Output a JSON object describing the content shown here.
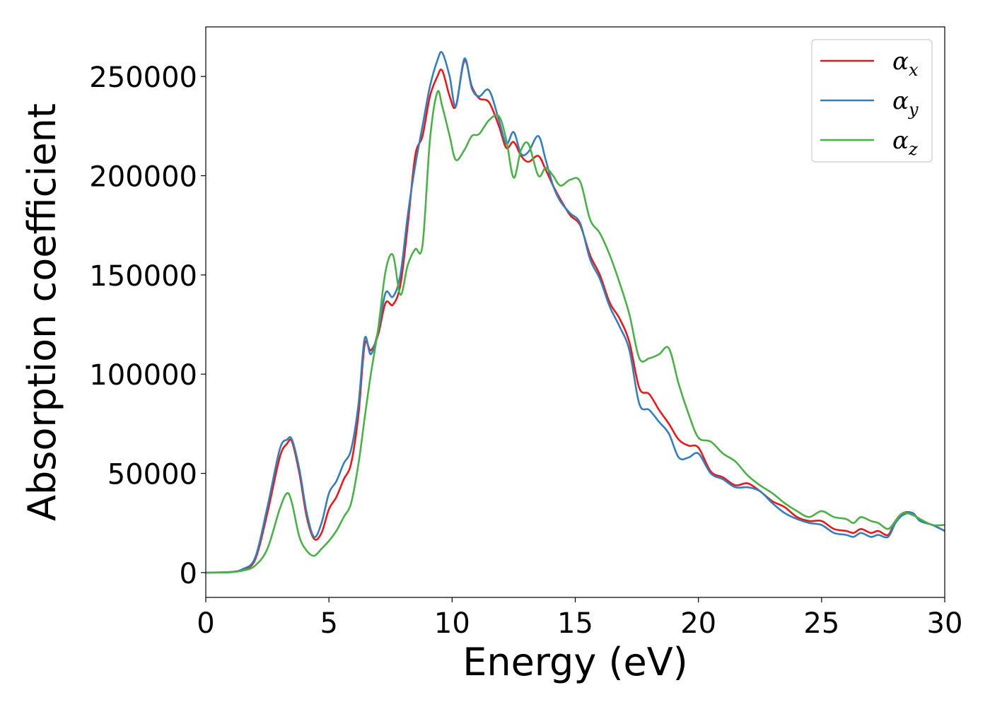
{
  "chart_data": {
    "type": "line",
    "title": "",
    "xlabel": "Energy (eV)",
    "ylabel": "Absorption coefficient",
    "xlim": [
      0,
      30
    ],
    "ylim": [
      -12500,
      275000
    ],
    "xticks": [
      0,
      5,
      10,
      15,
      20,
      25,
      30
    ],
    "xtick_labels": [
      "0",
      "5",
      "10",
      "15",
      "20",
      "25",
      "30"
    ],
    "yticks": [
      0,
      50000,
      100000,
      150000,
      200000,
      250000
    ],
    "ytick_labels": [
      "0",
      "50000",
      "100000",
      "150000",
      "200000",
      "250000"
    ],
    "grid": false,
    "legend_position": "top-right",
    "series": [
      {
        "name": "αx",
        "symbol": "α",
        "subscript": "x",
        "color": "#e41a1c",
        "x": [
          0,
          1,
          1.5,
          2,
          2.5,
          3,
          3.3,
          3.5,
          3.8,
          4.1,
          4.4,
          4.7,
          5,
          5.3,
          5.6,
          5.9,
          6.2,
          6.45,
          6.7,
          7,
          7.3,
          7.6,
          7.9,
          8.2,
          8.5,
          8.8,
          9.1,
          9.4,
          9.6,
          9.9,
          10.15,
          10.5,
          10.8,
          11.1,
          11.5,
          11.9,
          12.2,
          12.5,
          12.8,
          13.1,
          13.5,
          13.8,
          14.1,
          14.4,
          14.8,
          15.2,
          15.6,
          16,
          16.4,
          16.8,
          17.2,
          17.6,
          18,
          18.4,
          18.8,
          19.2,
          19.6,
          20,
          20.5,
          21,
          21.5,
          22,
          22.5,
          23,
          23.5,
          24,
          24.5,
          25,
          25.5,
          26,
          26.3,
          26.6,
          27,
          27.3,
          27.7,
          28,
          28.3,
          28.7,
          29,
          29.5,
          30
        ],
        "values": [
          0,
          300,
          1500,
          6500,
          30000,
          58000,
          65000,
          66000,
          50000,
          28000,
          17000,
          20000,
          32000,
          38000,
          47000,
          55000,
          80000,
          115000,
          112000,
          120000,
          136000,
          135000,
          145000,
          175000,
          210000,
          220000,
          240000,
          250000,
          253000,
          240000,
          235000,
          258000,
          245000,
          239000,
          237000,
          225000,
          214000,
          217000,
          210000,
          207000,
          210000,
          203000,
          195000,
          188000,
          180000,
          175000,
          160000,
          150000,
          136000,
          128000,
          116000,
          93000,
          90000,
          82000,
          75000,
          67000,
          64000,
          63000,
          51000,
          48000,
          44000,
          45000,
          41000,
          36000,
          33000,
          28000,
          26000,
          26000,
          22000,
          21000,
          20000,
          22000,
          20000,
          21000,
          19000,
          26000,
          30000,
          30000,
          26000,
          24000,
          21000
        ]
      },
      {
        "name": "αy",
        "symbol": "α",
        "subscript": "y",
        "color": "#377eb8",
        "x": [
          0,
          1,
          1.5,
          2,
          2.5,
          3,
          3.3,
          3.5,
          3.8,
          4.1,
          4.4,
          4.7,
          5,
          5.3,
          5.6,
          5.9,
          6.2,
          6.45,
          6.7,
          7,
          7.3,
          7.6,
          7.9,
          8.2,
          8.5,
          8.8,
          9.1,
          9.4,
          9.6,
          9.9,
          10.15,
          10.5,
          10.8,
          11.1,
          11.5,
          11.9,
          12.2,
          12.5,
          12.8,
          13.1,
          13.5,
          13.8,
          14.1,
          14.4,
          14.8,
          15.2,
          15.6,
          16,
          16.4,
          16.8,
          17.2,
          17.6,
          18,
          18.4,
          18.8,
          19.2,
          19.6,
          20,
          20.5,
          21,
          21.5,
          22,
          22.5,
          23,
          23.5,
          24,
          24.5,
          25,
          25.5,
          26,
          26.3,
          26.6,
          27,
          27.3,
          27.7,
          28,
          28.3,
          28.7,
          29,
          29.5,
          30
        ],
        "values": [
          0,
          300,
          1800,
          7500,
          33000,
          62000,
          67000,
          67000,
          52000,
          30000,
          18000,
          25000,
          40000,
          46000,
          55000,
          62000,
          85000,
          118000,
          110000,
          122000,
          141000,
          139000,
          150000,
          180000,
          205000,
          225000,
          245000,
          258000,
          262000,
          250000,
          235000,
          259000,
          244000,
          240000,
          243000,
          228000,
          216000,
          222000,
          211000,
          212000,
          220000,
          208000,
          195000,
          187000,
          181000,
          176000,
          158000,
          148000,
          134000,
          124000,
          112000,
          85000,
          82000,
          76000,
          70000,
          58000,
          58000,
          60000,
          50000,
          47000,
          43000,
          43000,
          41000,
          35000,
          30000,
          27000,
          25000,
          24000,
          20000,
          19000,
          18000,
          20000,
          18000,
          19000,
          18000,
          25000,
          29000,
          30000,
          26000,
          24000,
          21000
        ]
      },
      {
        "name": "αz",
        "symbol": "α",
        "subscript": "z",
        "color": "#4daf4a",
        "x": [
          0,
          1,
          1.5,
          2,
          2.5,
          3,
          3.3,
          3.5,
          3.8,
          4.1,
          4.4,
          4.7,
          5,
          5.3,
          5.6,
          5.9,
          6.2,
          6.45,
          6.7,
          7,
          7.3,
          7.6,
          7.9,
          8.2,
          8.5,
          8.8,
          9.1,
          9.4,
          9.6,
          9.9,
          10.15,
          10.5,
          10.8,
          11.1,
          11.5,
          11.9,
          12.2,
          12.5,
          12.8,
          13.1,
          13.5,
          13.8,
          14.1,
          14.4,
          14.8,
          15.2,
          15.6,
          16,
          16.4,
          16.8,
          17.2,
          17.6,
          18,
          18.4,
          18.8,
          19.2,
          19.6,
          20,
          20.5,
          21,
          21.5,
          22,
          22.5,
          23,
          23.5,
          24,
          24.5,
          25,
          25.5,
          26,
          26.3,
          26.6,
          27,
          27.3,
          27.7,
          28,
          28.3,
          28.7,
          29,
          29.5,
          30
        ],
        "values": [
          0,
          200,
          1000,
          3500,
          12000,
          32000,
          40000,
          35000,
          18000,
          11000,
          8500,
          12000,
          16000,
          21000,
          28000,
          35000,
          55000,
          78000,
          100000,
          123000,
          152000,
          160000,
          140000,
          155000,
          163000,
          165000,
          218000,
          242000,
          235000,
          220000,
          208000,
          213000,
          220000,
          221000,
          228000,
          230000,
          218000,
          199000,
          213000,
          216000,
          200000,
          204000,
          200000,
          195000,
          198000,
          197000,
          178000,
          171000,
          160000,
          146000,
          130000,
          108000,
          108000,
          110000,
          113000,
          95000,
          80000,
          68000,
          66000,
          60000,
          56000,
          49000,
          44000,
          40000,
          35000,
          31000,
          28000,
          31000,
          28000,
          27000,
          25000,
          28000,
          26000,
          25000,
          22000,
          26000,
          30000,
          29000,
          27000,
          24000,
          24000
        ]
      }
    ]
  }
}
